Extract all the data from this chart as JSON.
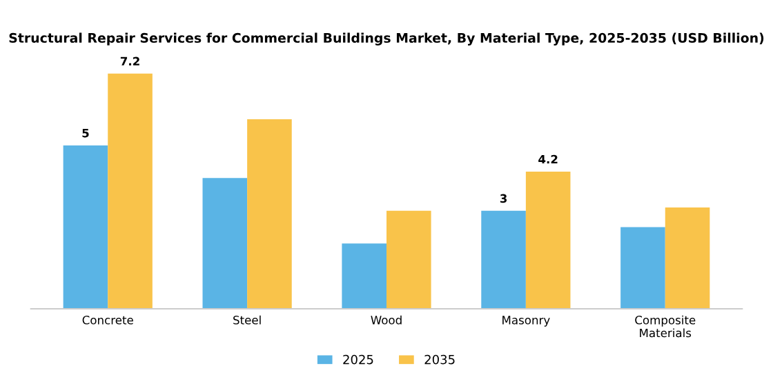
{
  "chart_data": {
    "type": "bar",
    "title": "Structural Repair Services for Commercial Buildings Market, By Material Type, 2025-2035 (USD Billion)",
    "categories": [
      "Concrete",
      "Steel",
      "Wood",
      "Masonry",
      "Composite\nMaterials"
    ],
    "series": [
      {
        "name": "2025",
        "color": "#5ab4e5",
        "values": [
          5,
          4.0,
          2.0,
          3,
          2.5
        ],
        "value_labels": [
          "5",
          null,
          null,
          "3",
          null
        ]
      },
      {
        "name": "2035",
        "color": "#f9c34a",
        "values": [
          7.2,
          5.8,
          3.0,
          4.2,
          3.1
        ],
        "value_labels": [
          "7.2",
          null,
          null,
          "4.2",
          null
        ]
      }
    ],
    "legend": "bottom",
    "grid": false
  }
}
